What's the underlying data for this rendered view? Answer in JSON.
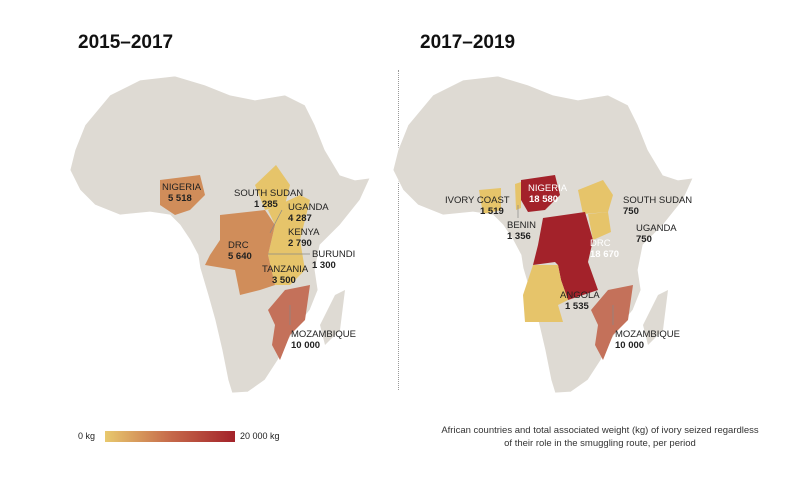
{
  "panels": [
    {
      "title": "2015–2017",
      "countries": [
        {
          "name": "NIGERIA",
          "value": "5 518"
        },
        {
          "name": "SOUTH SUDAN",
          "value": "1 285"
        },
        {
          "name": "UGANDA",
          "value": "4 287"
        },
        {
          "name": "KENYA",
          "value": "2 790"
        },
        {
          "name": "DRC",
          "value": "5 640"
        },
        {
          "name": "BURUNDI",
          "value": "1 300"
        },
        {
          "name": "TANZANIA",
          "value": "3 500"
        },
        {
          "name": "MOZAMBIQUE",
          "value": "10 000"
        }
      ]
    },
    {
      "title": "2017–2019",
      "countries": [
        {
          "name": "IVORY COAST",
          "value": "1 519"
        },
        {
          "name": "NIGERIA",
          "value": "18 580"
        },
        {
          "name": "BENIN",
          "value": "1 356"
        },
        {
          "name": "SOUTH SUDAN",
          "value": "750"
        },
        {
          "name": "DRC",
          "value": "18 670"
        },
        {
          "name": "UGANDA",
          "value": "750"
        },
        {
          "name": "ANGOLA",
          "value": "1 535"
        },
        {
          "name": "MOZAMBIQUE",
          "value": "10 000"
        }
      ]
    }
  ],
  "legend": {
    "min": "0 kg",
    "max": "20 000 kg",
    "colors": [
      "#e8c96e",
      "#c66a4a",
      "#a3222a"
    ]
  },
  "caption": "African countries and total associated weight (kg) of ivory seized regardless of their role in the smuggling route, per period",
  "colors": {
    "land": "#dedad3",
    "low": "#e6c46a",
    "mid": "#d08d5a",
    "moz": "#c4715a",
    "high": "#a3222a"
  }
}
